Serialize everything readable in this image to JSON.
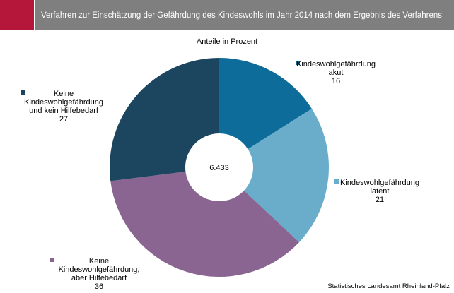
{
  "chart_data": {
    "type": "donut",
    "title": "Verfahren zur Einschätzung der Gefährdung des Kindeswohls im Jahr 2014 nach dem Ergebnis des Verfahrens",
    "subtitle": "Anteile in Prozent",
    "center_label": "6.433",
    "source": "Statistisches Landesamt Rheinland-Pfalz",
    "categories": [
      "Kindeswohlgefährdung\nakut",
      "Kindeswohlgefährdung\nlatent",
      "Keine\nKindeswohlgefährdung,\naber Hilfebedarf",
      "Keine\nKindeswohlgefährdung\nund kein Hilfebedarf"
    ],
    "values": [
      16,
      21,
      36,
      27
    ],
    "colors": [
      "#0d6c99",
      "#6aadcb",
      "#8a6592",
      "#1c4660"
    ]
  }
}
